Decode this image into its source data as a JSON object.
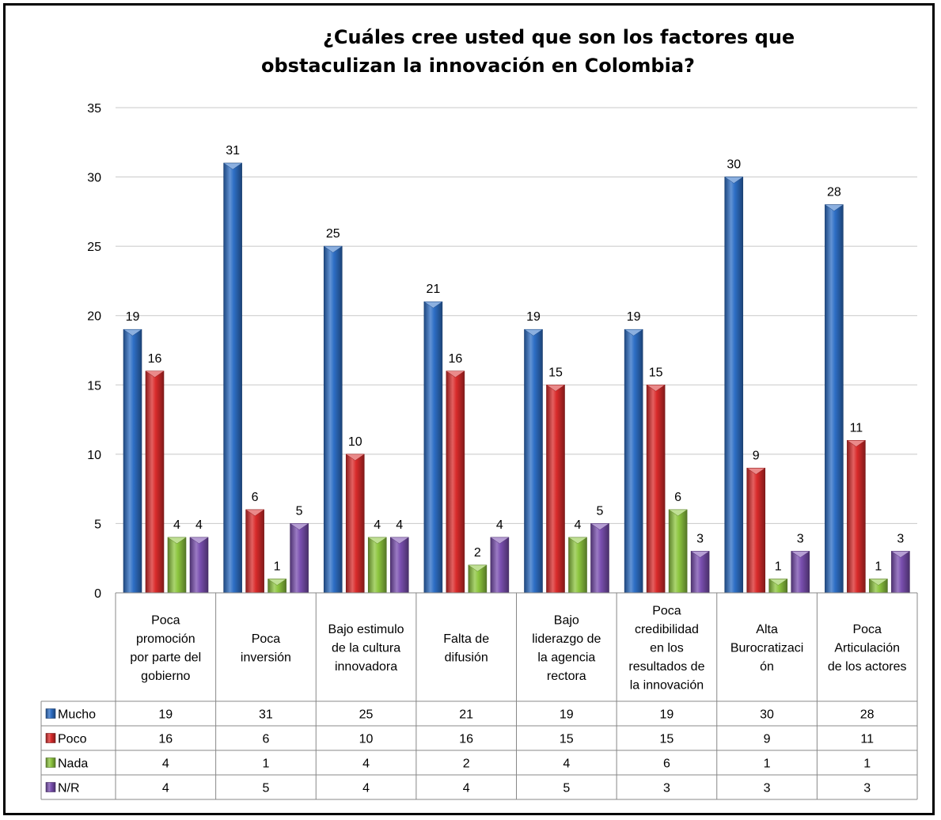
{
  "chart_data": {
    "type": "bar",
    "title": "¿Cuáles cree usted que son los factores que obstaculizan la innovación en Colombia?",
    "title_lines": [
      "¿Cuáles cree usted que son los factores que",
      "obstaculizan la innovación en Colombia?"
    ],
    "categories": [
      "Poca promoción por parte del gobierno",
      "Poca inversión",
      "Bajo estimulo de la cultura innovadora",
      "Falta de difusión",
      "Bajo liderazgo de la agencia rectora",
      "Poca credibilidad en los resultados de la innovación",
      "Alta Burocratización",
      "Poca Articulación de los actores"
    ],
    "category_lines": [
      [
        "Poca",
        "promoción",
        "por parte del",
        "gobierno"
      ],
      [
        "Poca",
        "inversión"
      ],
      [
        "Bajo estimulo",
        "de la cultura",
        "innovadora"
      ],
      [
        "Falta de",
        "difusión"
      ],
      [
        "Bajo",
        "liderazgo de",
        "la agencia",
        "rectora"
      ],
      [
        "Poca",
        "credibilidad",
        "en los",
        "resultados de",
        "la innovación"
      ],
      [
        "Alta",
        "Burocratizaci",
        "ón"
      ],
      [
        "Poca",
        "Articulación",
        "de los actores"
      ]
    ],
    "series": [
      {
        "name": "Mucho",
        "color": "#2e6fc6",
        "values": [
          19,
          31,
          25,
          21,
          19,
          19,
          30,
          28
        ]
      },
      {
        "name": "Poco",
        "color": "#d92b2b",
        "values": [
          16,
          6,
          10,
          16,
          15,
          15,
          9,
          11
        ]
      },
      {
        "name": "Nada",
        "color": "#8dc63f",
        "values": [
          4,
          1,
          4,
          2,
          4,
          6,
          1,
          1
        ]
      },
      {
        "name": "N/R",
        "color": "#7a4fb0",
        "values": [
          4,
          5,
          4,
          4,
          5,
          3,
          3,
          3
        ]
      }
    ],
    "ylim": [
      0,
      35
    ],
    "yticks": [
      0,
      5,
      10,
      15,
      20,
      25,
      30,
      35
    ],
    "grid": true,
    "data_labels": true,
    "legend": "data-table"
  }
}
